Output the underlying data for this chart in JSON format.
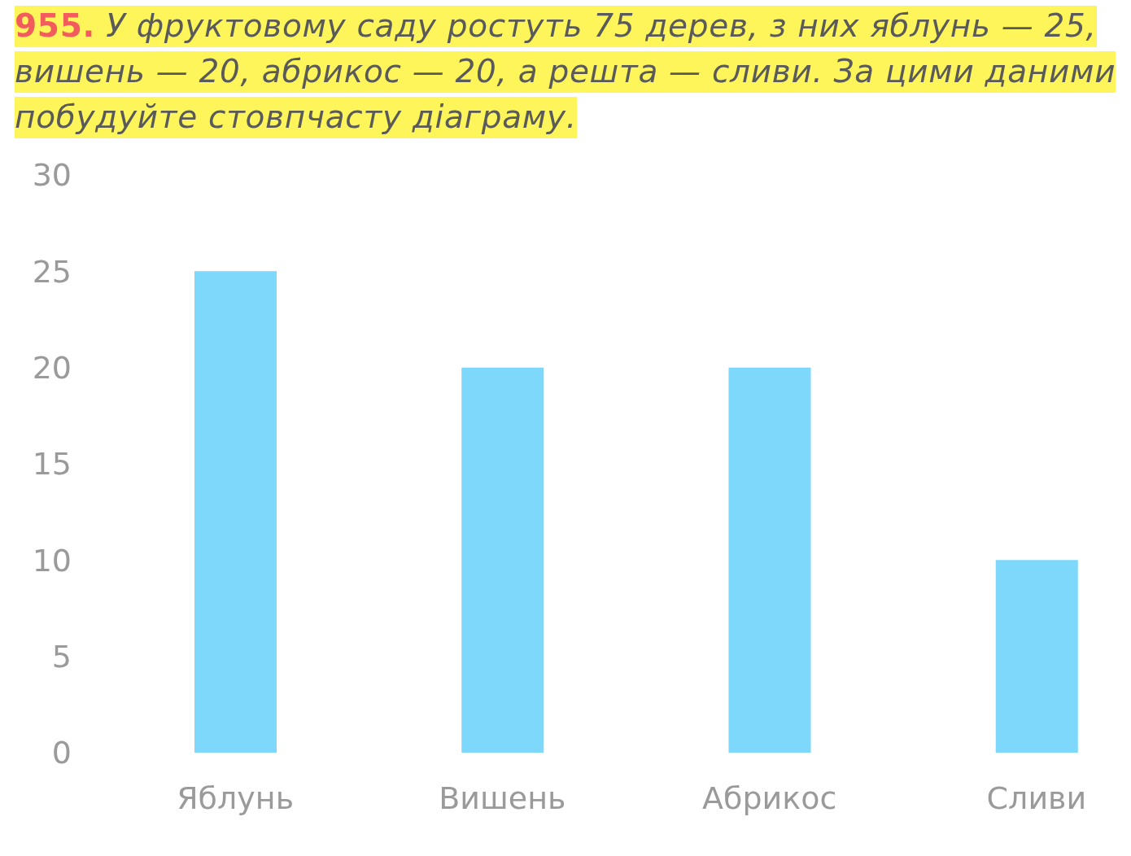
{
  "chart_data": {
    "type": "bar",
    "title": "955. У фруктовому саду ростуть 75 дерев, з них яблунь — 25, вишень — 20, абрикос — 20, а решта — сливи. За цими даними побудуйте стовпчасту діаграму.",
    "categories": [
      "Яблунь",
      "Вишень",
      "Абрикос",
      "Сливи"
    ],
    "values": [
      25,
      20,
      20,
      10
    ],
    "color": "#7dd8fc",
    "ylim": [
      0,
      30
    ],
    "yticks": [
      0,
      5,
      10,
      15,
      20,
      25,
      30
    ]
  }
}
